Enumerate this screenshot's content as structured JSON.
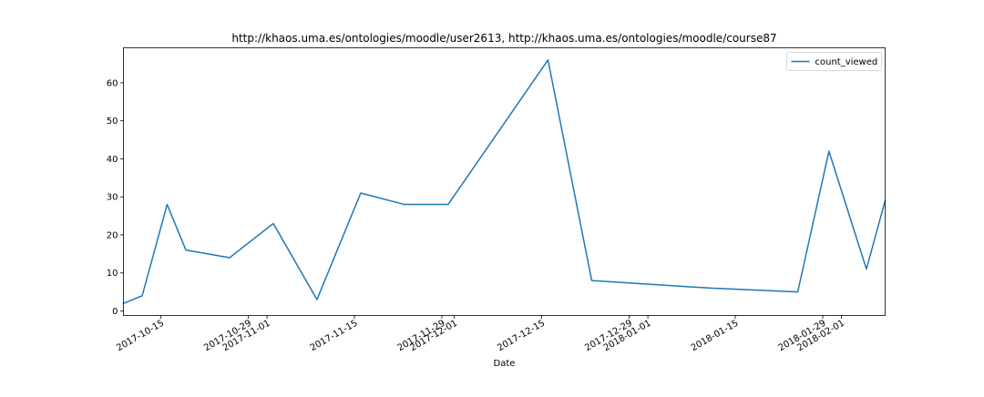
{
  "chart_data": {
    "type": "line",
    "title": "http://khaos.uma.es/ontologies/moodle/user2613, http://khaos.uma.es/ontologies/moodle/course87",
    "xlabel": "Date",
    "ylabel": "",
    "x_ticks": [
      "2017-10-15",
      "2017-10-29",
      "2017-11-01",
      "2017-11-15",
      "2017-11-29",
      "2017-12-01",
      "2017-12-15",
      "2017-12-29",
      "2018-01-01",
      "2018-01-15",
      "2018-01-29",
      "2018-02-01"
    ],
    "y_ticks": [
      0,
      10,
      20,
      30,
      40,
      50,
      60
    ],
    "xlim": [
      "2017-10-09",
      "2018-02-08"
    ],
    "ylim": [
      -1.2,
      69.2
    ],
    "grid": false,
    "legend_position": "top-right",
    "series": [
      {
        "name": "count_viewed",
        "color": "#1f77b4",
        "points": [
          {
            "x": "2017-10-09",
            "y": 2
          },
          {
            "x": "2017-10-12",
            "y": 4
          },
          {
            "x": "2017-10-16",
            "y": 28
          },
          {
            "x": "2017-10-19",
            "y": 16
          },
          {
            "x": "2017-10-26",
            "y": 14
          },
          {
            "x": "2017-11-02",
            "y": 23
          },
          {
            "x": "2017-11-09",
            "y": 3
          },
          {
            "x": "2017-11-16",
            "y": 31
          },
          {
            "x": "2017-11-23",
            "y": 28
          },
          {
            "x": "2017-11-30",
            "y": 28
          },
          {
            "x": "2017-12-16",
            "y": 66
          },
          {
            "x": "2017-12-23",
            "y": 8
          },
          {
            "x": "2018-01-11",
            "y": 6
          },
          {
            "x": "2018-01-25",
            "y": 5
          },
          {
            "x": "2018-01-30",
            "y": 42
          },
          {
            "x": "2018-02-05",
            "y": 11
          },
          {
            "x": "2018-02-08",
            "y": 29
          }
        ]
      }
    ]
  }
}
